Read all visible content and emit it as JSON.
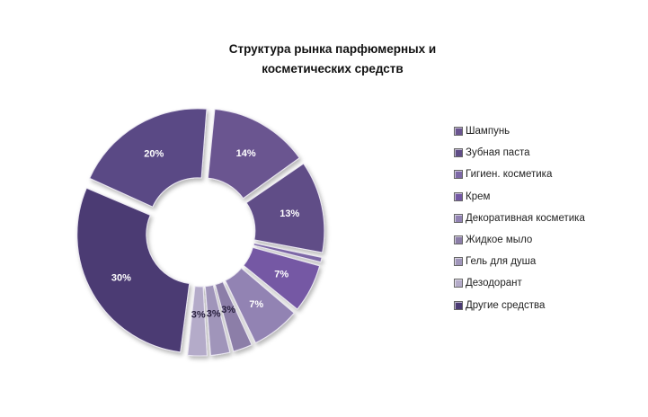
{
  "chart_data": {
    "type": "pie",
    "style": "doughnut-exploded",
    "title_lines": [
      "Структура рынка парфюмерных и",
      "косметических средств"
    ],
    "legend_position": "right",
    "slices": [
      {
        "name": "Шампунь",
        "value": 14,
        "label": "14%",
        "color": "#6b5590"
      },
      {
        "name": "Зубная паста",
        "value": 13,
        "label": "13%",
        "color": "#604d87"
      },
      {
        "name": "Гигиен. косметика",
        "value": 1,
        "label": "",
        "color": "#7d68a6"
      },
      {
        "name": "Крем",
        "value": 7,
        "label": "7%",
        "color": "#7458a4"
      },
      {
        "name": "Декоративная косметика",
        "value": 7,
        "label": "7%",
        "color": "#9283b3"
      },
      {
        "name": "Жидкое мыло",
        "value": 3,
        "label": "3%",
        "color": "#8c7ea8"
      },
      {
        "name": "Гель для душа",
        "value": 3,
        "label": "3%",
        "color": "#a095ba"
      },
      {
        "name": "Дезодорант",
        "value": 3,
        "label": "3%",
        "color": "#b4abc9"
      },
      {
        "name": "Другие средства",
        "value": 30,
        "label": "30%",
        "color": "#4b3b73"
      },
      {
        "name": "",
        "value": 20,
        "label": "20%",
        "color": "#5a4a85"
      }
    ]
  }
}
